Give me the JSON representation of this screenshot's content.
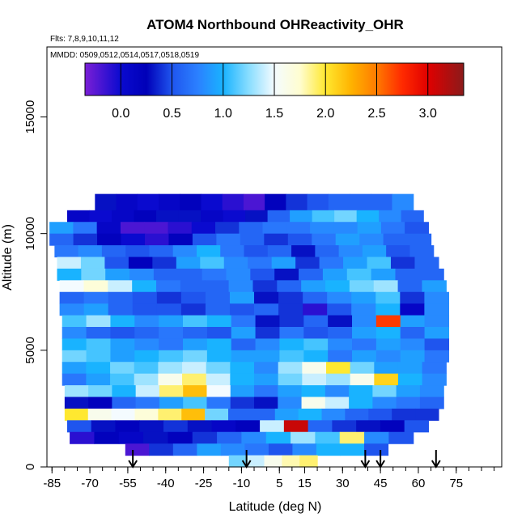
{
  "chart_data": {
    "type": "heatmap",
    "title": "ATOM4 Northbound OHReactivity_OHR",
    "flights_label": "Flts: 7,8,9,10,11,12",
    "dates_label": "MMDD: 0509,0512,0514,0517,0518,0519",
    "xlabel": "Latitude (deg N)",
    "ylabel": "Altitude (m)",
    "xlim": [
      -87,
      93
    ],
    "ylim": [
      0,
      18000
    ],
    "x_ticks": [
      -85,
      -70,
      -55,
      -40,
      -25,
      -10,
      5,
      15,
      30,
      45,
      60,
      75
    ],
    "x_minor_step": 5,
    "y_ticks": [
      0,
      5000,
      10000,
      15000
    ],
    "colorbar": {
      "range": [
        -0.35,
        3.35
      ],
      "ticks": [
        0.0,
        0.5,
        1.0,
        1.5,
        2.0,
        2.5,
        3.0
      ],
      "tick_labels": [
        "0.0",
        "0.5",
        "1.0",
        "1.5",
        "2.0",
        "2.5",
        "3.0"
      ],
      "stops": [
        {
          "v": -0.35,
          "color": "#7b1fd6"
        },
        {
          "v": 0.0,
          "color": "#0a0acf"
        },
        {
          "v": 0.25,
          "color": "#0000b8"
        },
        {
          "v": 0.5,
          "color": "#1f55ee"
        },
        {
          "v": 0.75,
          "color": "#2b80ff"
        },
        {
          "v": 1.0,
          "color": "#19b3ff"
        },
        {
          "v": 1.25,
          "color": "#88ddff"
        },
        {
          "v": 1.5,
          "color": "#f4fbff"
        },
        {
          "v": 1.75,
          "color": "#fffdd0"
        },
        {
          "v": 2.0,
          "color": "#ffe830"
        },
        {
          "v": 2.25,
          "color": "#ffb300"
        },
        {
          "v": 2.5,
          "color": "#ff7a00"
        },
        {
          "v": 2.75,
          "color": "#ff2a00"
        },
        {
          "v": 3.0,
          "color": "#e00000"
        },
        {
          "v": 3.35,
          "color": "#8b1a1a"
        }
      ]
    },
    "grid": false,
    "legend_position": "top",
    "profile_arrows_lat": [
      -53,
      -8,
      39,
      45,
      67
    ],
    "bands": [
      {
        "alt": [
          11000,
          11700
        ],
        "lat": [
          -68,
          58
        ],
        "values": [
          0.3,
          0.1,
          0.0,
          0.1,
          0.2,
          0.0,
          -0.1,
          -0.2,
          0.2,
          0.4,
          0.5,
          0.6,
          0.6,
          0.6,
          0.8
        ]
      },
      {
        "alt": [
          10500,
          11000
        ],
        "lat": [
          -79,
          62
        ],
        "values": [
          0.1,
          0.0,
          0.1,
          0.2,
          0.3,
          0.3,
          0.1,
          0.0,
          0.3,
          0.6,
          0.9,
          1.1,
          1.2,
          1.0,
          0.8,
          0.6
        ]
      },
      {
        "alt": [
          10000,
          10500
        ],
        "lat": [
          -86,
          64
        ],
        "values": [
          0.9,
          0.7,
          0.1,
          -0.2,
          -0.2,
          -0.1,
          0.0,
          0.4,
          0.6,
          0.7,
          0.7,
          0.8,
          0.8,
          0.9,
          0.7,
          0.5
        ]
      },
      {
        "alt": [
          9500,
          10000
        ],
        "lat": [
          -86,
          65
        ],
        "values": [
          0.6,
          0.4,
          0.2,
          0.0,
          -0.1,
          0.2,
          0.5,
          0.7,
          0.6,
          0.4,
          0.5,
          0.7,
          0.9,
          0.8,
          0.6,
          0.6
        ]
      },
      {
        "alt": [
          9000,
          9500
        ],
        "lat": [
          -84,
          66
        ],
        "values": [
          0.7,
          0.8,
          0.6,
          0.5,
          0.6,
          0.8,
          1.0,
          0.7,
          0.5,
          0.6,
          0.3,
          0.6,
          0.8,
          0.9,
          0.5,
          0.6
        ]
      },
      {
        "alt": [
          8500,
          9000
        ],
        "lat": [
          -83,
          68
        ],
        "values": [
          1.4,
          1.2,
          0.5,
          0.2,
          0.4,
          0.9,
          1.1,
          0.8,
          0.7,
          0.9,
          0.4,
          0.7,
          0.9,
          1.1,
          0.4,
          0.6
        ]
      },
      {
        "alt": [
          8000,
          8500
        ],
        "lat": [
          -83,
          70
        ],
        "values": [
          1.0,
          1.2,
          0.9,
          0.8,
          0.6,
          0.6,
          0.7,
          0.8,
          0.5,
          0.3,
          0.6,
          0.9,
          1.1,
          0.9,
          0.6,
          0.6
        ]
      },
      {
        "alt": [
          7500,
          8000
        ],
        "lat": [
          -82,
          71
        ],
        "values": [
          1.5,
          1.7,
          1.4,
          1.0,
          0.7,
          0.6,
          0.6,
          0.8,
          0.4,
          0.6,
          0.9,
          1.0,
          1.2,
          1.3,
          0.6,
          0.9
        ]
      },
      {
        "alt": [
          7000,
          7500
        ],
        "lat": [
          -82,
          72
        ],
        "values": [
          0.6,
          0.7,
          0.6,
          0.5,
          0.4,
          0.5,
          0.6,
          0.9,
          0.3,
          0.4,
          0.6,
          0.8,
          0.9,
          1.1,
          0.4,
          0.8
        ]
      },
      {
        "alt": [
          6500,
          7000
        ],
        "lat": [
          -82,
          72
        ],
        "values": [
          0.8,
          0.9,
          0.6,
          0.5,
          0.5,
          0.4,
          0.6,
          0.5,
          0.6,
          0.4,
          -0.1,
          0.5,
          0.8,
          1.0,
          0.1,
          0.8
        ]
      },
      {
        "alt": [
          6000,
          6500
        ],
        "lat": [
          -81,
          72
        ],
        "values": [
          1.1,
          1.3,
          1.0,
          0.8,
          0.9,
          1.1,
          1.0,
          0.7,
          0.3,
          0.4,
          0.6,
          0.3,
          0.8,
          2.7,
          0.9,
          0.8
        ]
      },
      {
        "alt": [
          5500,
          6000
        ],
        "lat": [
          -81,
          72
        ],
        "values": [
          0.8,
          0.6,
          0.5,
          0.6,
          0.7,
          0.6,
          0.5,
          0.9,
          0.4,
          0.7,
          0.5,
          0.6,
          0.9,
          1.0,
          0.6,
          0.9
        ]
      },
      {
        "alt": [
          5000,
          5500
        ],
        "lat": [
          -81,
          72
        ],
        "values": [
          1.0,
          1.1,
          0.9,
          0.8,
          0.7,
          0.9,
          1.0,
          0.6,
          0.8,
          1.0,
          1.1,
          0.8,
          0.7,
          0.9,
          0.8,
          0.5
        ]
      },
      {
        "alt": [
          4500,
          5000
        ],
        "lat": [
          -81,
          72
        ],
        "values": [
          1.2,
          1.1,
          0.9,
          1.0,
          1.1,
          1.2,
          1.0,
          0.9,
          0.9,
          1.1,
          1.0,
          0.7,
          0.9,
          0.8,
          0.9,
          0.7
        ]
      },
      {
        "alt": [
          4000,
          4500
        ],
        "lat": [
          -81,
          71
        ],
        "values": [
          0.9,
          1.0,
          1.2,
          1.1,
          1.3,
          1.4,
          1.2,
          1.0,
          0.8,
          1.3,
          1.6,
          2.0,
          1.2,
          0.9,
          0.9,
          0.7
        ]
      },
      {
        "alt": [
          3500,
          4000
        ],
        "lat": [
          -81,
          71
        ],
        "values": [
          0.7,
          0.9,
          1.1,
          1.3,
          1.6,
          1.9,
          1.4,
          1.0,
          0.9,
          1.2,
          1.4,
          1.3,
          1.6,
          2.1,
          1.0,
          0.8
        ]
      },
      {
        "alt": [
          3000,
          3500
        ],
        "lat": [
          -80,
          70
        ],
        "values": [
          1.3,
          1.2,
          1.0,
          1.4,
          1.9,
          2.2,
          1.5,
          0.9,
          0.7,
          0.9,
          1.0,
          0.8,
          1.0,
          1.2,
          0.9,
          0.8
        ]
      },
      {
        "alt": [
          2500,
          3000
        ],
        "lat": [
          -80,
          70
        ],
        "values": [
          0.3,
          0.2,
          0.6,
          0.7,
          0.9,
          1.1,
          0.7,
          0.4,
          0.3,
          0.8,
          1.6,
          1.4,
          1.0,
          0.8,
          0.7,
          0.6
        ]
      },
      {
        "alt": [
          2000,
          2500
        ],
        "lat": [
          -80,
          68
        ],
        "values": [
          2.0,
          1.6,
          1.5,
          1.7,
          1.9,
          2.2,
          1.2,
          0.6,
          0.6,
          0.9,
          1.0,
          0.8,
          0.6,
          0.5,
          0.4,
          0.4
        ]
      },
      {
        "alt": [
          1500,
          2000
        ],
        "lat": [
          -79,
          64
        ],
        "values": [
          0.5,
          0.3,
          0.2,
          0.3,
          0.4,
          0.3,
          0.1,
          0.2,
          1.4,
          3.1,
          0.6,
          0.4,
          0.3,
          0.2,
          0.5
        ]
      },
      {
        "alt": [
          1000,
          1500
        ],
        "lat": [
          -78,
          58
        ],
        "values": [
          -0.1,
          0.2,
          0.1,
          0.3,
          0.2,
          0.4,
          0.6,
          0.8,
          1.0,
          1.3,
          1.1,
          1.9,
          0.8,
          0.5
        ]
      },
      {
        "alt": [
          500,
          1000
        ],
        "lat": [
          -56,
          48
        ],
        "values": [
          -0.2,
          0.4,
          0.6,
          0.9,
          0.8,
          0.7,
          0.5,
          0.8,
          1.0,
          1.0,
          0.5
        ]
      },
      {
        "alt": [
          0,
          500
        ],
        "lat": [
          -15,
          20
        ],
        "values": [
          1.2,
          1.4,
          1.6,
          1.8,
          1.9
        ]
      }
    ]
  }
}
